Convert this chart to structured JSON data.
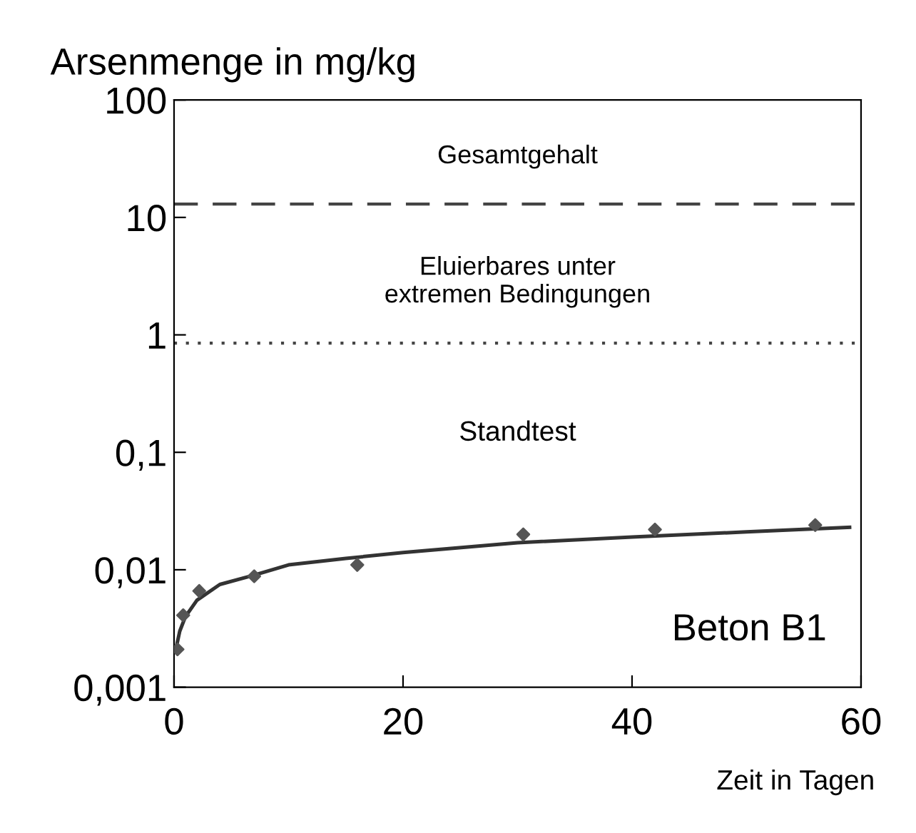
{
  "chart_data": {
    "type": "scatter",
    "ylabel": "Arsenmenge in mg/kg",
    "xlabel": "Zeit in Tagen",
    "log": "y",
    "xlim": [
      0,
      60
    ],
    "xticks": [
      0,
      20,
      40,
      60
    ],
    "ylim": [
      0.001,
      100
    ],
    "yticks": [
      {
        "value": 0.001,
        "label": "0,001"
      },
      {
        "value": 0.01,
        "label": "0,01"
      },
      {
        "value": 0.1,
        "label": "0,1"
      },
      {
        "value": 1,
        "label": "1"
      },
      {
        "value": 10,
        "label": "10"
      },
      {
        "value": 100,
        "label": "100"
      }
    ],
    "grid": false,
    "series": [
      {
        "marker": "diamond",
        "color": "#555555",
        "x": [
          0.3,
          0.8,
          2.2,
          7,
          16,
          30.5,
          42,
          56
        ],
        "values": [
          0.0021,
          0.0041,
          0.0066,
          0.0088,
          0.011,
          0.02,
          0.022,
          0.024
        ]
      },
      {
        "type": "line",
        "marker": "none",
        "color": "#333333",
        "line_style": "solid",
        "x": [
          0.2,
          0.5,
          1,
          2,
          4,
          7,
          10,
          15,
          20,
          30,
          40,
          50,
          59
        ],
        "values": [
          0.0022,
          0.003,
          0.004,
          0.0055,
          0.0075,
          0.009,
          0.011,
          0.0125,
          0.014,
          0.017,
          0.019,
          0.021,
          0.023
        ]
      }
    ],
    "ref_lines": [
      {
        "axis": "y",
        "value": 13,
        "label": "Gesamtgehalt",
        "line_style": "dashed",
        "color": "#444444"
      },
      {
        "axis": "y",
        "value": 0.85,
        "label": "Eluierbares unter\nextremen Bedingungen",
        "line_style": "dotted",
        "color": "#444444"
      }
    ],
    "annotations": [
      "Standtest",
      "Beton B1"
    ]
  }
}
